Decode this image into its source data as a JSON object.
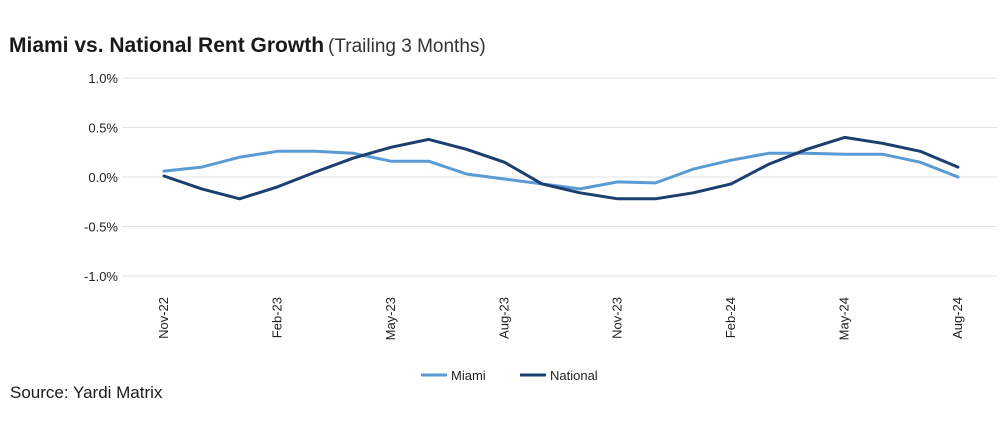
{
  "chart_data": {
    "type": "line",
    "title": "Miami vs. National Rent Growth",
    "subtitle": "(Trailing 3 Months)",
    "xlabel": "",
    "ylabel": "",
    "ylim": [
      -1.0,
      1.0
    ],
    "y_ticks": [
      "1.0%",
      "0.5%",
      "0.0%",
      "-0.5%",
      "-1.0%"
    ],
    "y_tick_values": [
      1.0,
      0.5,
      0.0,
      -0.5,
      -1.0
    ],
    "x": [
      "Nov-22",
      "Dec-22",
      "Jan-23",
      "Feb-23",
      "Mar-23",
      "Apr-23",
      "May-23",
      "Jun-23",
      "Jul-23",
      "Aug-23",
      "Sep-23",
      "Oct-23",
      "Nov-23",
      "Dec-23",
      "Jan-24",
      "Feb-24",
      "Mar-24",
      "Apr-24",
      "May-24",
      "Jun-24",
      "Jul-24",
      "Aug-24"
    ],
    "x_tick_labels": [
      "Nov-22",
      "Feb-23",
      "May-23",
      "Aug-23",
      "Nov-23",
      "Feb-24",
      "May-24",
      "Aug-24"
    ],
    "grid": true,
    "legend_position": "bottom-center",
    "series": [
      {
        "name": "Miami",
        "color": "#5b9bd5",
        "values": [
          0.06,
          0.1,
          0.2,
          0.26,
          0.26,
          0.24,
          0.16,
          0.16,
          0.03,
          -0.02,
          -0.07,
          -0.12,
          -0.05,
          -0.06,
          0.08,
          0.17,
          0.24,
          0.24,
          0.23,
          0.23,
          0.15,
          0.0
        ]
      },
      {
        "name": "National",
        "color": "#1b3f6e",
        "values": [
          0.01,
          -0.12,
          -0.22,
          -0.1,
          0.05,
          0.19,
          0.3,
          0.38,
          0.28,
          0.15,
          -0.07,
          -0.16,
          -0.22,
          -0.22,
          -0.16,
          -0.07,
          0.13,
          0.28,
          0.4,
          0.34,
          0.26,
          0.1
        ]
      }
    ]
  },
  "source": "Source: Yardi Matrix"
}
